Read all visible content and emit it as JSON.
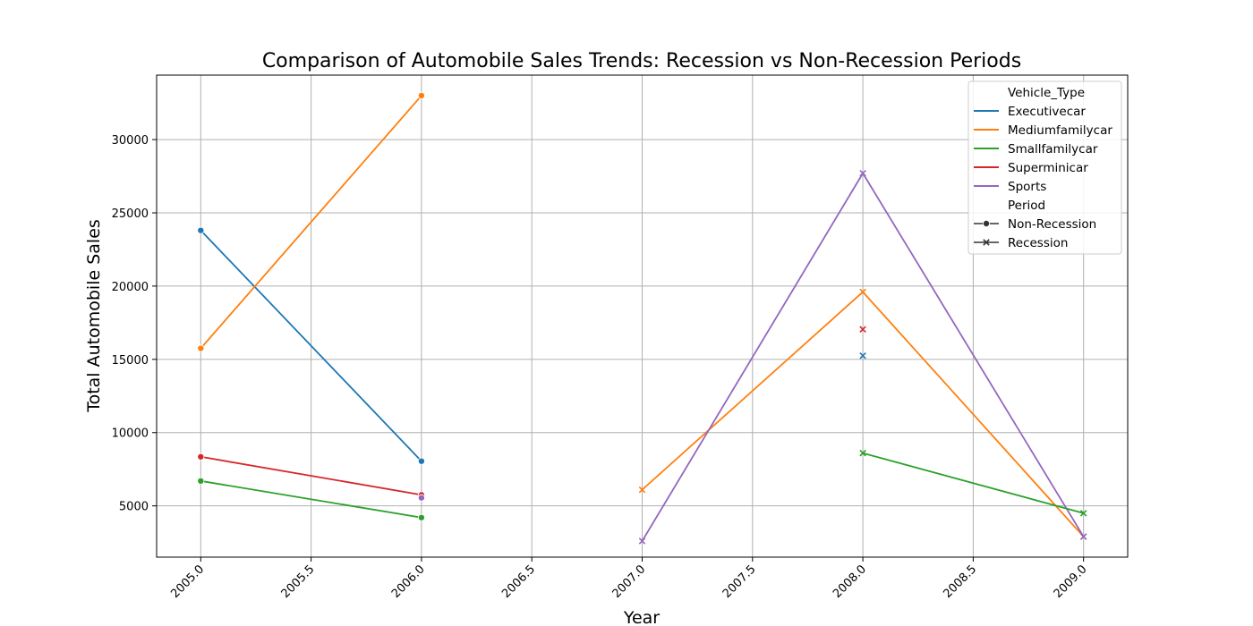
{
  "chart_data": {
    "type": "line",
    "title": "Comparison of Automobile Sales Trends: Recession vs Non-Recession Periods",
    "xlabel": "Year",
    "ylabel": "Total Automobile Sales",
    "xlim": [
      2004.8,
      2009.2
    ],
    "ylim": [
      1500,
      34400
    ],
    "x_ticks": [
      2005.0,
      2005.5,
      2006.0,
      2006.5,
      2007.0,
      2007.5,
      2008.0,
      2008.5,
      2009.0
    ],
    "x_tick_labels": [
      "2005.0",
      "2005.5",
      "2006.0",
      "2006.5",
      "2007.0",
      "2007.5",
      "2008.0",
      "2008.5",
      "2009.0"
    ],
    "y_ticks": [
      5000,
      10000,
      15000,
      20000,
      25000,
      30000
    ],
    "y_tick_labels": [
      "5000",
      "10000",
      "15000",
      "20000",
      "25000",
      "30000"
    ],
    "grid": true,
    "legend_position": "top-right",
    "legend": {
      "hue_title": "Vehicle_Type",
      "style_title": "Period",
      "vehicle_types": [
        {
          "name": "Executivecar",
          "color": "#1f77b4"
        },
        {
          "name": "Mediumfamilycar",
          "color": "#ff7f0e"
        },
        {
          "name": "Smallfamilycar",
          "color": "#2ca02c"
        },
        {
          "name": "Superminicar",
          "color": "#d62728"
        },
        {
          "name": "Sports",
          "color": "#9467bd"
        }
      ],
      "periods": [
        {
          "name": "Non-Recession",
          "marker": "circle"
        },
        {
          "name": "Recession",
          "marker": "x"
        }
      ]
    },
    "series": [
      {
        "vehicle_type": "Executivecar",
        "period": "Non-Recession",
        "color": "#1f77b4",
        "marker": "circle",
        "x": [
          2005,
          2006
        ],
        "y": [
          23800,
          8050
        ]
      },
      {
        "vehicle_type": "Mediumfamilycar",
        "period": "Non-Recession",
        "color": "#ff7f0e",
        "marker": "circle",
        "x": [
          2005,
          2006
        ],
        "y": [
          15750,
          33000
        ]
      },
      {
        "vehicle_type": "Smallfamilycar",
        "period": "Non-Recession",
        "color": "#2ca02c",
        "marker": "circle",
        "x": [
          2005,
          2006
        ],
        "y": [
          6700,
          4200
        ]
      },
      {
        "vehicle_type": "Superminicar",
        "period": "Non-Recession",
        "color": "#d62728",
        "marker": "circle",
        "x": [
          2005,
          2006
        ],
        "y": [
          8350,
          5750
        ]
      },
      {
        "vehicle_type": "Sports",
        "period": "Non-Recession",
        "color": "#9467bd",
        "marker": "circle",
        "x": [
          2006
        ],
        "y": [
          5550
        ]
      },
      {
        "vehicle_type": "Mediumfamilycar",
        "period": "Recession",
        "color": "#ff7f0e",
        "marker": "x",
        "x": [
          2007,
          2008,
          2009
        ],
        "y": [
          6100,
          19600,
          2900
        ]
      },
      {
        "vehicle_type": "Sports",
        "period": "Recession",
        "color": "#9467bd",
        "marker": "x",
        "x": [
          2007,
          2008,
          2009
        ],
        "y": [
          2600,
          27700,
          2900
        ]
      },
      {
        "vehicle_type": "Smallfamilycar",
        "period": "Recession",
        "color": "#2ca02c",
        "marker": "x",
        "x": [
          2008,
          2009
        ],
        "y": [
          8600,
          4500
        ]
      },
      {
        "vehicle_type": "Superminicar",
        "period": "Recession",
        "color": "#d62728",
        "marker": "x",
        "x": [
          2008
        ],
        "y": [
          17050
        ]
      },
      {
        "vehicle_type": "Executivecar",
        "period": "Recession",
        "color": "#1f77b4",
        "marker": "x",
        "x": [
          2008
        ],
        "y": [
          15250
        ]
      }
    ]
  }
}
